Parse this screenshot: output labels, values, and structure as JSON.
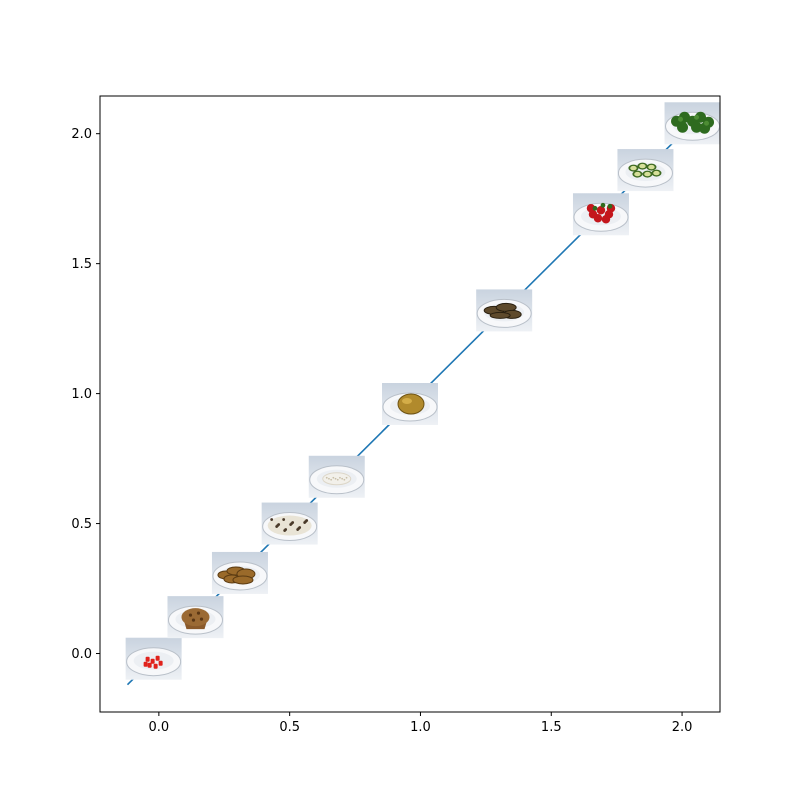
{
  "chart_data": {
    "type": "line",
    "title": "",
    "xlabel": "",
    "ylabel": "",
    "xlim": [
      -0.225,
      2.145
    ],
    "ylim": [
      -0.225,
      2.145
    ],
    "xticks": [
      0.0,
      0.5,
      1.0,
      1.5,
      2.0
    ],
    "xtick_labels": [
      "0.0",
      "0.5",
      "1.0",
      "1.5",
      "2.0"
    ],
    "yticks": [
      0.0,
      0.5,
      1.0,
      1.5,
      2.0
    ],
    "ytick_labels": [
      "0.0",
      "0.5",
      "1.0",
      "1.5",
      "2.0"
    ],
    "grid": false,
    "line": {
      "color": "#1f77b4",
      "x": [
        -0.12,
        2.0
      ],
      "y": [
        -0.12,
        2.0
      ]
    },
    "image_markers": [
      {
        "x": -0.02,
        "y": -0.02,
        "icon": "red-pepper-pieces-plate-icon"
      },
      {
        "x": 0.14,
        "y": 0.14,
        "icon": "muffin-plate-icon"
      },
      {
        "x": 0.31,
        "y": 0.31,
        "icon": "fried-pieces-plate-icon"
      },
      {
        "x": 0.5,
        "y": 0.5,
        "icon": "beans-plate-icon"
      },
      {
        "x": 0.68,
        "y": 0.68,
        "icon": "rice-plate-icon"
      },
      {
        "x": 0.96,
        "y": 0.96,
        "icon": "baked-potato-plate-icon"
      },
      {
        "x": 1.32,
        "y": 1.32,
        "icon": "grilled-meat-plate-icon"
      },
      {
        "x": 1.69,
        "y": 1.69,
        "icon": "strawberries-plate-icon"
      },
      {
        "x": 1.86,
        "y": 1.86,
        "icon": "cucumber-slices-plate-icon"
      },
      {
        "x": 2.04,
        "y": 2.04,
        "icon": "broccoli-plate-icon"
      }
    ]
  }
}
